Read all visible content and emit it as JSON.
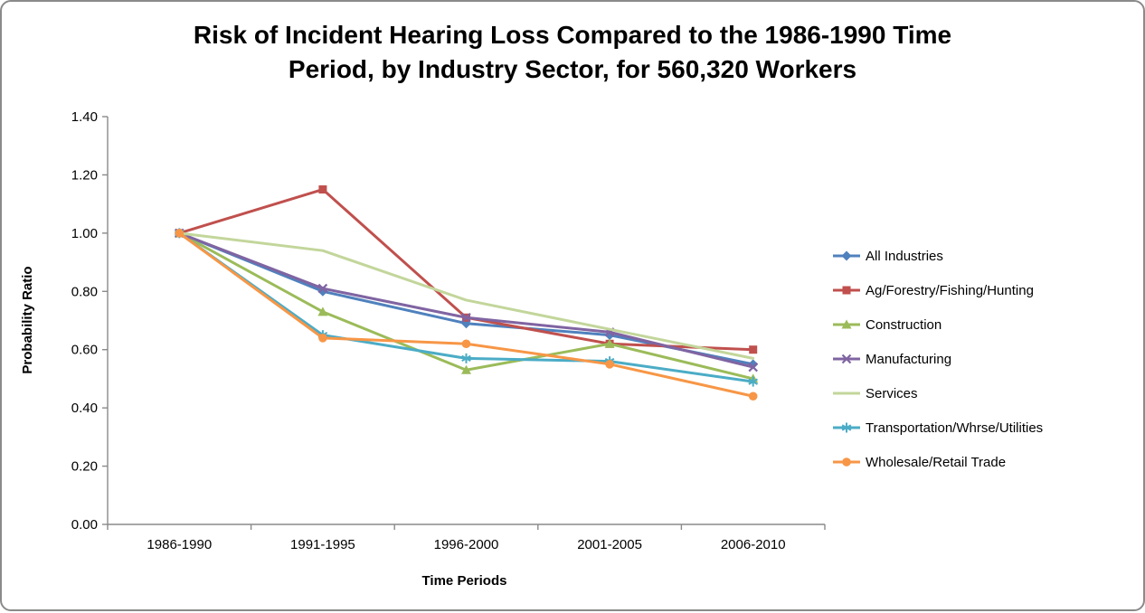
{
  "header": {
    "title_line1": "Risk of Incident Hearing Loss Compared to the 1986-1990 Time",
    "title_line2": "Period, by Industry Sector, for 560,320 Workers"
  },
  "chart_data": {
    "type": "line",
    "title": "Risk of Incident Hearing Loss Compared to the 1986-1990 Time Period, by Industry Sector, for 560,320 Workers",
    "xlabel": "Time Periods",
    "ylabel": "Probability Ratio",
    "categories": [
      "1986-1990",
      "1991-1995",
      "1996-2000",
      "2001-2005",
      "2006-2010"
    ],
    "ylim": [
      0.0,
      1.4
    ],
    "ytick_step": 0.2,
    "ytick_labels": [
      "0.00",
      "0.20",
      "0.40",
      "0.60",
      "0.80",
      "1.00",
      "1.20",
      "1.40"
    ],
    "grid": false,
    "legend_position": "right",
    "axis_color": "#8a8a8a",
    "text_color": "#000000",
    "series": [
      {
        "name": "All Industries",
        "color": "#4F81BD",
        "marker": "diamond",
        "values": [
          1.0,
          0.8,
          0.69,
          0.65,
          0.55
        ]
      },
      {
        "name": "Ag/Forestry/Fishing/Hunting",
        "color": "#C0504D",
        "marker": "square",
        "values": [
          1.0,
          1.15,
          0.71,
          0.62,
          0.6
        ]
      },
      {
        "name": "Construction",
        "color": "#9BBB59",
        "marker": "triangle",
        "values": [
          1.0,
          0.73,
          0.53,
          0.62,
          0.5
        ]
      },
      {
        "name": "Manufacturing",
        "color": "#8064A2",
        "marker": "x",
        "values": [
          1.0,
          0.81,
          0.71,
          0.66,
          0.54
        ]
      },
      {
        "name": "Services",
        "color": "#C3D69B",
        "marker": "none",
        "values": [
          1.0,
          0.94,
          0.77,
          0.67,
          0.57
        ]
      },
      {
        "name": "Transportation/Whrse/Utilities",
        "color": "#4BACC6",
        "marker": "asterisk",
        "values": [
          1.0,
          0.65,
          0.57,
          0.56,
          0.49
        ]
      },
      {
        "name": "Wholesale/Retail Trade",
        "color": "#F79646",
        "marker": "circle",
        "values": [
          1.0,
          0.64,
          0.62,
          0.55,
          0.44
        ]
      }
    ]
  }
}
